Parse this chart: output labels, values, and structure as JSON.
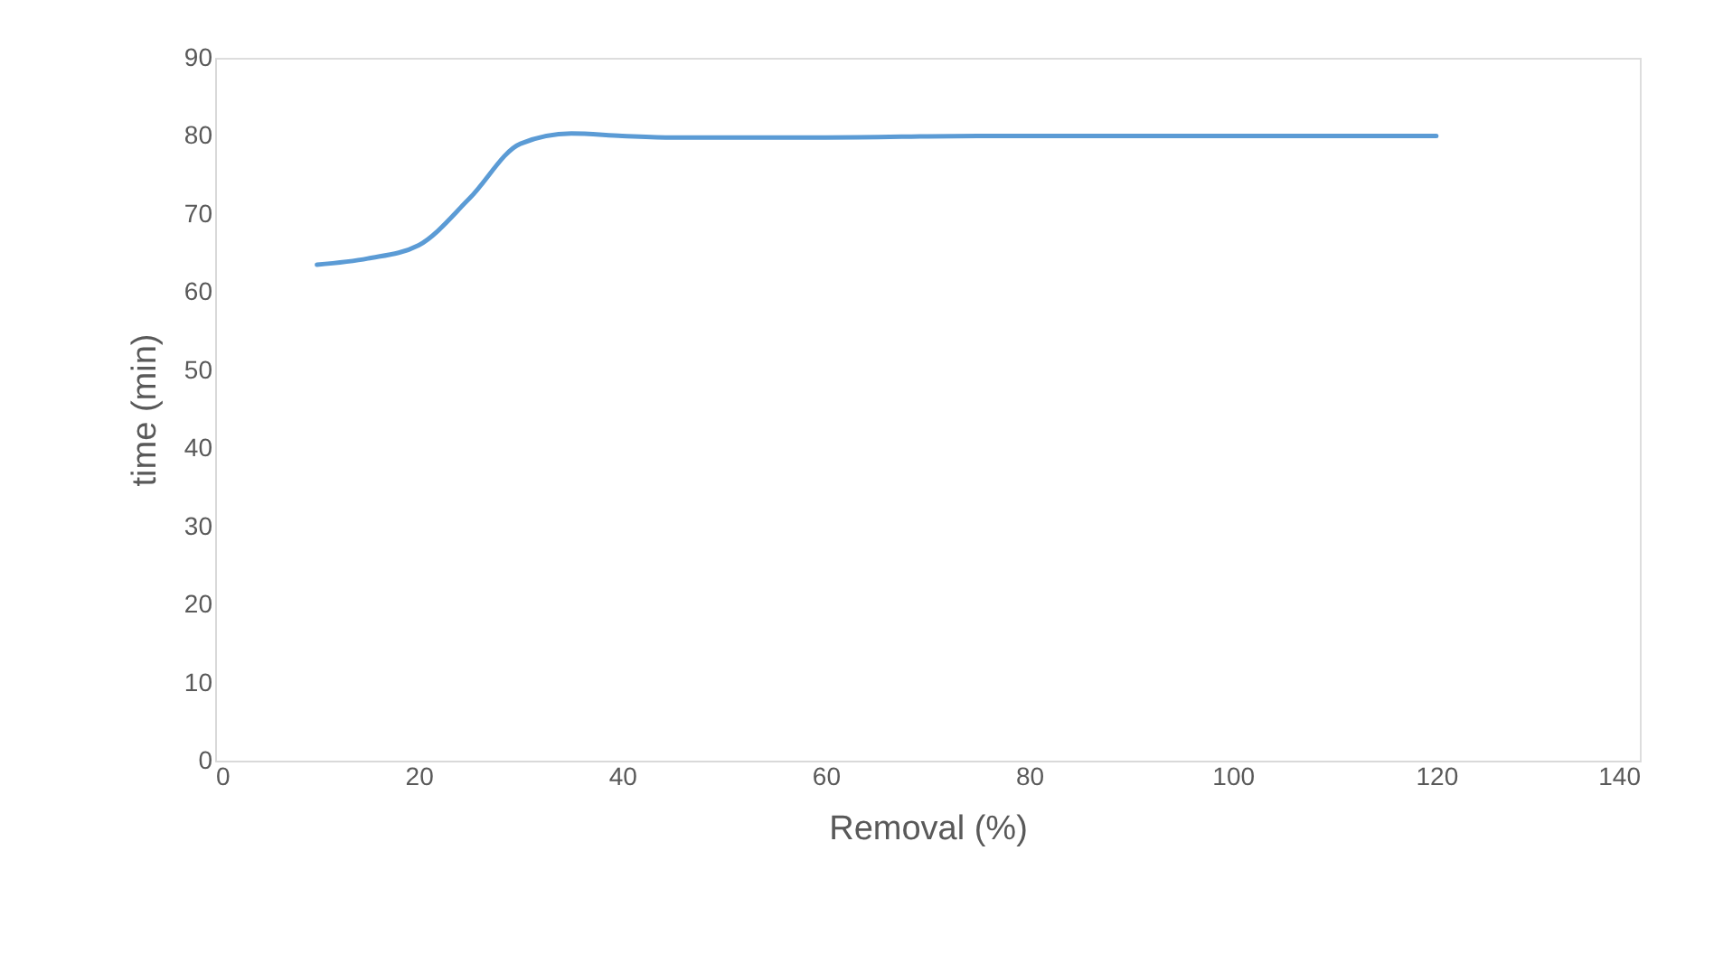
{
  "chart_data": {
    "type": "line",
    "xlabel": "Removal (%)",
    "ylabel": "time (min)",
    "x": [
      10,
      15,
      20,
      25,
      30,
      35,
      40,
      45,
      60,
      75,
      100,
      120
    ],
    "series": [
      {
        "color": "#5b9bd5",
        "values": [
          63.5,
          64.3,
          66,
          72,
          79,
          80.3,
          80,
          79.8,
          79.8,
          80,
          80,
          80
        ]
      }
    ],
    "xlim": [
      0,
      140
    ],
    "xticks": [
      0,
      20,
      40,
      60,
      80,
      100,
      120,
      140
    ],
    "ylim": [
      0,
      90
    ],
    "yticks": [
      0,
      10,
      20,
      30,
      40,
      50,
      60,
      70,
      80,
      90
    ],
    "grid": false,
    "marker": "none",
    "line_style": "solid"
  }
}
